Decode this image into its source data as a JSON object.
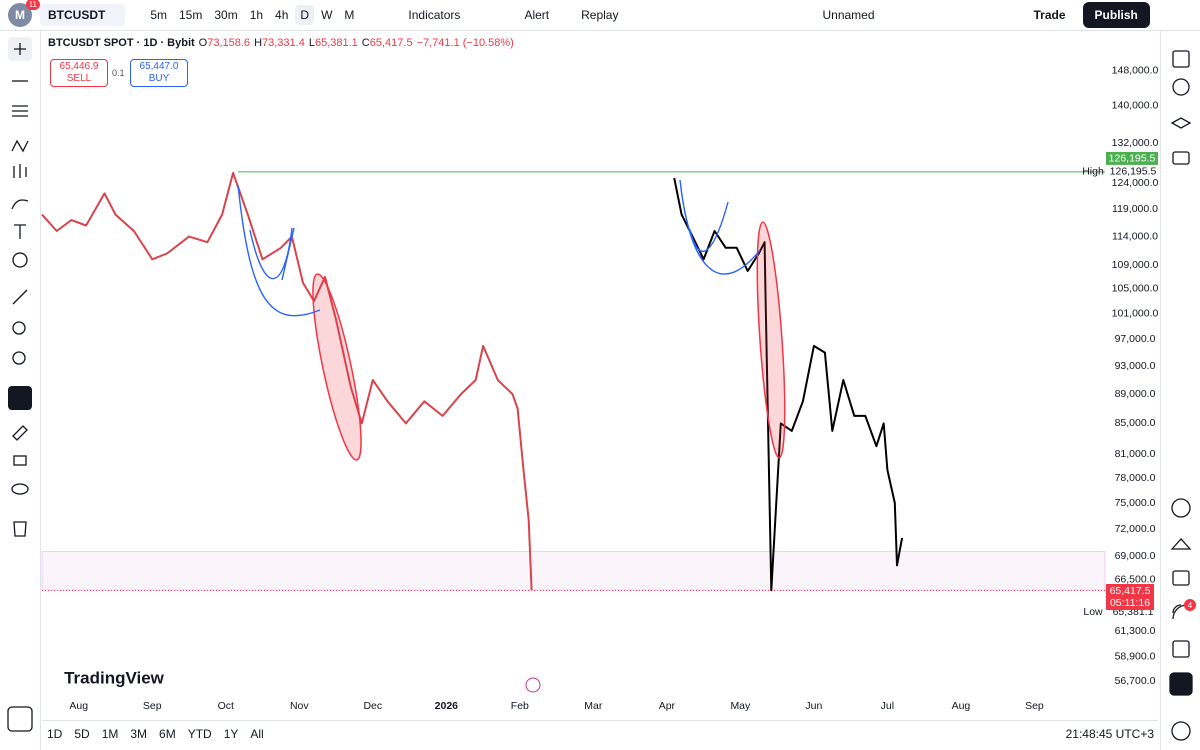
{
  "toolbar": {
    "avatar": "M",
    "avatar_badge": "11",
    "symbol": "BTCUSDT",
    "intervals": [
      "5m",
      "15m",
      "30m",
      "1h",
      "4h",
      "D",
      "W",
      "M"
    ],
    "indicators": "Indicators",
    "alert": "Alert",
    "replay": "Replay",
    "layout": "Unnamed",
    "trade": "Trade",
    "publish": "Publish"
  },
  "legend": {
    "title": "BTCUSDT SPOT · 1D · Bybit",
    "ohlc": [
      {
        "key": "O",
        "value": "73,158.6"
      },
      {
        "key": "H",
        "value": "73,331.4"
      },
      {
        "key": "L",
        "value": "65,381.1"
      },
      {
        "key": "C",
        "value": "65,417.5"
      }
    ],
    "change": "−7,741.1 (−10.58%)",
    "sell_price": "65,446.9",
    "sell": "SELL",
    "spread": "0.1",
    "buy_price": "65,447.0",
    "buy": "BUY"
  },
  "chart_data": {
    "type": "line",
    "log_scale": true,
    "ylim": [
      54600,
      156000
    ],
    "yticks": [
      {
        "value": 148000,
        "label": "148,000.0"
      },
      {
        "value": 140000,
        "label": "140,000.0"
      },
      {
        "value": 132000,
        "label": "132,000.0"
      },
      {
        "value": 124000,
        "label": "124,000.0"
      },
      {
        "value": 119000,
        "label": "119,000.0"
      },
      {
        "value": 114000,
        "label": "114,000.0"
      },
      {
        "value": 109000,
        "label": "109,000.0"
      },
      {
        "value": 105000,
        "label": "105,000.0"
      },
      {
        "value": 101000,
        "label": "101,000.0"
      },
      {
        "value": 97000,
        "label": "97,000.0"
      },
      {
        "value": 93000,
        "label": "93,000.0"
      },
      {
        "value": 89000,
        "label": "89,000.0"
      },
      {
        "value": 85000,
        "label": "85,000.0"
      },
      {
        "value": 81000,
        "label": "81,000.0"
      },
      {
        "value": 78000,
        "label": "78,000.0"
      },
      {
        "value": 75000,
        "label": "75,000.0"
      },
      {
        "value": 72000,
        "label": "72,000.0"
      },
      {
        "value": 69000,
        "label": "69,000.0"
      },
      {
        "value": 66500,
        "label": "66,500.0"
      },
      {
        "value": 61300,
        "label": "61,300.0"
      },
      {
        "value": 58900,
        "label": "58,900.0"
      },
      {
        "value": 56700,
        "label": "56,700.0"
      }
    ],
    "xlim": [
      -0.5,
      13.96
    ],
    "xticks": [
      {
        "value": 0,
        "label": "Aug"
      },
      {
        "value": 1,
        "label": "Sep"
      },
      {
        "value": 2,
        "label": "Oct"
      },
      {
        "value": 3,
        "label": "Nov"
      },
      {
        "value": 4,
        "label": "Dec"
      },
      {
        "value": 5,
        "label": "2026"
      },
      {
        "value": 6,
        "label": "Feb"
      },
      {
        "value": 7,
        "label": "Mar"
      },
      {
        "value": 8,
        "label": "Apr"
      },
      {
        "value": 9,
        "label": "May"
      },
      {
        "value": 10,
        "label": "Jun"
      },
      {
        "value": 11,
        "label": "Jul"
      },
      {
        "value": 12,
        "label": "Aug"
      },
      {
        "value": 13,
        "label": "Sep"
      }
    ],
    "series": [
      {
        "color": "#d9434b",
        "x": [
          -0.5,
          -0.3,
          -0.1,
          0.1,
          0.35,
          0.5,
          0.75,
          1.0,
          1.2,
          1.5,
          1.75,
          1.95,
          2.1,
          2.3,
          2.5,
          2.75,
          2.9,
          3.05,
          3.2,
          3.35,
          3.5,
          3.7,
          3.85,
          4.0,
          4.2,
          4.45,
          4.7,
          4.95,
          5.2,
          5.4,
          5.5,
          5.7,
          5.9,
          5.97,
          6.05,
          6.12,
          6.16
        ],
        "values": [
          118000,
          115000,
          117000,
          116000,
          122000,
          118000,
          115000,
          110000,
          111000,
          114000,
          113000,
          118000,
          126000,
          118000,
          110000,
          112000,
          114000,
          106000,
          103000,
          107000,
          100000,
          90000,
          85000,
          91000,
          88000,
          85000,
          88000,
          86000,
          89000,
          91000,
          96000,
          91000,
          89000,
          87000,
          79000,
          73000,
          65400
        ]
      },
      {
        "color": "#000000",
        "x": [
          8.1,
          8.2,
          8.35,
          8.5,
          8.65,
          8.8,
          8.95,
          9.1,
          9.25,
          9.33,
          9.34,
          9.42,
          9.55,
          9.7,
          9.85,
          10.0,
          10.15,
          10.25,
          10.4,
          10.55,
          10.7,
          10.85,
          10.95,
          11.0,
          11.1,
          11.13,
          11.2
        ],
        "values": [
          125000,
          118000,
          114000,
          110000,
          115000,
          112000,
          112000,
          108000,
          111000,
          113000,
          105000,
          65400,
          85000,
          84000,
          88000,
          96000,
          95000,
          84000,
          91000,
          86000,
          86000,
          82000,
          85000,
          79000,
          75000,
          68000,
          71000
        ]
      }
    ],
    "high": {
      "label": "High",
      "value": 126195.5,
      "value_label": "126,195.5",
      "color": "#4caf50"
    },
    "low": {
      "label": "Low",
      "value": 65381.1,
      "value_label": "65,381.1",
      "color": "#f23645"
    },
    "last": {
      "value": 65417.5,
      "value_label": "65,417.5",
      "countdown": "05:11:16",
      "color": "#f23645"
    },
    "zone": [
      65381.1,
      69500
    ]
  },
  "watermark": "TradingView",
  "bottom": {
    "ranges": [
      "1D",
      "5D",
      "1M",
      "3M",
      "6M",
      "YTD",
      "1Y",
      "All"
    ],
    "clock": "21:48:45 UTC+3"
  },
  "sidebar": {
    "badge": "4"
  }
}
